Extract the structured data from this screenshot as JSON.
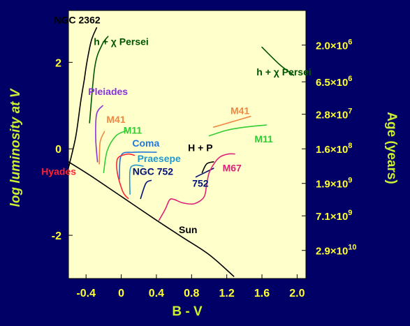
{
  "chart_data": {
    "type": "line",
    "title": "",
    "xlabel": "B - V",
    "ylabel": "log luminosity at V",
    "y2label": "Age (years)",
    "xlim": [
      -0.6,
      2.1
    ],
    "ylim": [
      -3.0,
      3.2
    ],
    "x_ticks": [
      -0.4,
      0,
      0.4,
      0.8,
      1.2,
      1.6,
      2.0
    ],
    "x_tick_labels": [
      "-0.4",
      "0",
      "0.4",
      "0.8",
      "1.2",
      "1.6",
      "2.0"
    ],
    "y_ticks": [
      2,
      0,
      -2
    ],
    "y_tick_labels": [
      "2",
      "0",
      "-2"
    ],
    "age_labels": [
      {
        "mantissa": "2.0",
        "exponent": "6",
        "y": 2.4
      },
      {
        "mantissa": "6.5",
        "exponent": "6",
        "y": 1.55
      },
      {
        "mantissa": "2.8",
        "exponent": "7",
        "y": 0.8
      },
      {
        "mantissa": "1.6",
        "exponent": "8",
        "y": 0.0
      },
      {
        "mantissa": "1.9",
        "exponent": "9",
        "y": -0.8
      },
      {
        "mantissa": "7.1",
        "exponent": "9",
        "y": -1.55
      },
      {
        "mantissa": "2.9",
        "exponent": "10",
        "y": -2.35
      }
    ],
    "series": [
      {
        "name": "NGC 2362",
        "color": "#000000",
        "label_x": -0.5,
        "label_y": 2.9,
        "x": [
          -0.62,
          -0.52,
          -0.46,
          -0.42,
          -0.39,
          -0.34,
          -0.28
        ],
        "y": [
          -0.6,
          0.25,
          1.1,
          1.6,
          2.0,
          2.5,
          2.8
        ]
      },
      {
        "name": "h + χ Persei",
        "color": "#005500",
        "label_x": 0.0,
        "label_y": 2.4,
        "x": [
          -0.36,
          -0.3,
          -0.22,
          -0.15
        ],
        "y": [
          0.6,
          1.9,
          2.4,
          2.6
        ]
      },
      {
        "name": "h + χ Persei",
        "color": "#005500",
        "label_x": 1.85,
        "label_y": 1.7,
        "x": [
          1.6,
          1.8,
          1.96
        ],
        "y": [
          2.35,
          1.95,
          1.7
        ]
      },
      {
        "name": "Pleiades",
        "color": "#8833dd",
        "label_x": -0.15,
        "label_y": 1.25,
        "x": [
          -0.27,
          -0.29,
          -0.28,
          -0.21
        ],
        "y": [
          -0.3,
          0.25,
          0.8,
          1.0
        ]
      },
      {
        "name": "M41",
        "color": "#ee8844",
        "label_x": -0.06,
        "label_y": 0.6,
        "x": [
          -0.25,
          -0.24,
          -0.19
        ],
        "y": [
          -0.35,
          0.15,
          0.4
        ]
      },
      {
        "name": "M41",
        "color": "#ee8844",
        "label_x": 1.35,
        "label_y": 0.8,
        "x": [
          1.05,
          1.25,
          1.47
        ],
        "y": [
          0.5,
          0.62,
          0.75
        ]
      },
      {
        "name": "M11",
        "color": "#33cc33",
        "label_x": 0.13,
        "label_y": 0.35,
        "x": [
          -0.2,
          -0.16,
          -0.06,
          0.06
        ],
        "y": [
          -0.55,
          -0.05,
          0.3,
          0.42
        ]
      },
      {
        "name": "M11",
        "color": "#33cc33",
        "label_x": 1.62,
        "label_y": 0.15,
        "x": [
          1.0,
          1.2,
          1.4,
          1.65
        ],
        "y": [
          0.3,
          0.43,
          0.5,
          0.55
        ]
      },
      {
        "name": "Coma",
        "color": "#2277dd",
        "label_x": 0.28,
        "label_y": 0.05,
        "x": [
          -0.02,
          0.0,
          0.15,
          0.4
        ],
        "y": [
          -0.7,
          -0.15,
          -0.08,
          -0.08
        ]
      },
      {
        "name": "H + P",
        "color": "#000000",
        "label_x": 0.9,
        "label_y": -0.05,
        "x": [
          0.92,
          0.97,
          1.05
        ],
        "y": [
          -0.55,
          -0.35,
          -0.3
        ]
      },
      {
        "name": "Praesepe",
        "color": "#2299cc",
        "label_x": 0.43,
        "label_y": -0.3,
        "x": [
          0.1,
          0.1,
          0.15,
          0.25
        ],
        "y": [
          -1.05,
          -0.5,
          -0.38,
          -0.4
        ]
      },
      {
        "name": "NGC 752",
        "color": "#001177",
        "label_x": 0.36,
        "label_y": -0.6,
        "x": [
          0.22,
          0.28,
          0.34
        ],
        "y": [
          -1.15,
          -0.8,
          -0.73
        ]
      },
      {
        "name": "752",
        "color": "#001177",
        "label_x": 0.9,
        "label_y": -0.88,
        "x": [
          0.85,
          0.95,
          1.05
        ],
        "y": [
          -0.65,
          -0.55,
          -0.45
        ]
      },
      {
        "name": "M67",
        "color": "#dd2277",
        "label_x": 1.26,
        "label_y": -0.52,
        "x": [
          0.43,
          0.5,
          0.55,
          0.6,
          0.7,
          0.83,
          0.94,
          0.97,
          1.0,
          1.07,
          1.13,
          1.22,
          1.29
        ],
        "y": [
          -1.65,
          -1.4,
          -1.18,
          -1.17,
          -1.25,
          -1.27,
          -1.12,
          -0.85,
          -0.55,
          -0.3,
          -0.18,
          -0.12,
          -0.12
        ]
      },
      {
        "name": "Hyades",
        "color": "#ff2233",
        "label_x": -0.71,
        "label_y": -0.6,
        "x": [
          0.08,
          0.02,
          -0.04,
          -0.05,
          -0.02,
          0.08,
          0.15
        ],
        "y": [
          -1.15,
          -1.0,
          -0.6,
          -0.3,
          -0.18,
          -0.12,
          -0.15
        ]
      },
      {
        "name": "Sun",
        "color": "#000000",
        "label_x": 0.76,
        "label_y": -1.95,
        "x": [
          -0.6,
          -0.35,
          0.0,
          0.4,
          0.7,
          1.0,
          1.28
        ],
        "y": [
          -0.3,
          -0.62,
          -1.1,
          -1.65,
          -2.05,
          -2.45,
          -2.95
        ]
      }
    ]
  }
}
